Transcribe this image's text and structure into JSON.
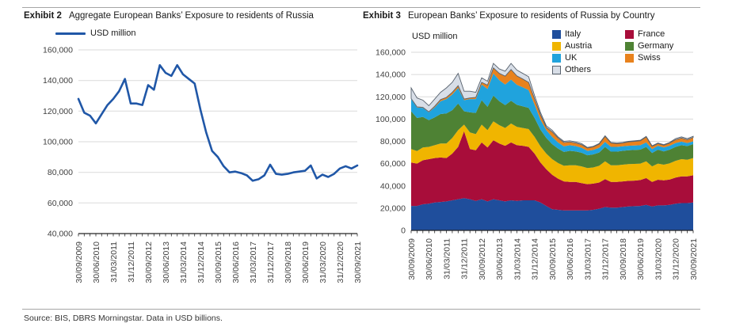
{
  "page": {
    "source_text": "Source: BIS, DBRS Morningstar. Data in USD billions."
  },
  "exhibit2": {
    "label": "Exhibit 2",
    "title": "Aggregate European Banks’ Exposure to residents of Russia",
    "legend_label": "USD million"
  },
  "exhibit3": {
    "label": "Exhibit 3",
    "title": "European Banks’ Exposure to residents of Russia by Country",
    "unit_label": "USD million",
    "legend": [
      {
        "label": "Italy",
        "color": "#1F4E9C"
      },
      {
        "label": "France",
        "color": "#A80D3A"
      },
      {
        "label": "Austria",
        "color": "#F0B500"
      },
      {
        "label": "Germany",
        "color": "#4E8234"
      },
      {
        "label": "UK",
        "color": "#20A3DD"
      },
      {
        "label": "Swiss",
        "color": "#E8821D"
      },
      {
        "label": "Others",
        "color": "#D8DEE7",
        "border": "#58626e"
      }
    ]
  },
  "chart_data": [
    {
      "type": "line",
      "title": "Aggregate European Banks’ Exposure to residents of Russia",
      "ylabel": "USD million",
      "color": "#2057A7",
      "ylim": [
        40000,
        160000
      ],
      "ystep": 20000,
      "grid": true,
      "x_tick_step": 3,
      "x": [
        "30/09/2009",
        "31/12/2009",
        "31/03/2010",
        "30/06/2010",
        "30/09/2010",
        "31/12/2010",
        "31/03/2011",
        "30/06/2011",
        "30/09/2011",
        "31/12/2011",
        "31/03/2012",
        "30/06/2012",
        "30/09/2012",
        "31/12/2012",
        "31/03/2013",
        "30/06/2013",
        "30/09/2013",
        "31/12/2013",
        "31/03/2014",
        "30/06/2014",
        "30/09/2014",
        "31/12/2014",
        "31/03/2015",
        "30/06/2015",
        "30/09/2015",
        "31/12/2015",
        "31/03/2016",
        "30/06/2016",
        "30/09/2016",
        "31/12/2016",
        "31/03/2017",
        "30/06/2017",
        "30/09/2017",
        "31/12/2017",
        "31/03/2018",
        "30/06/2018",
        "30/09/2018",
        "31/12/2018",
        "31/03/2019",
        "30/06/2019",
        "30/09/2019",
        "31/12/2019",
        "31/03/2020",
        "30/06/2020",
        "30/09/2020",
        "31/12/2020",
        "31/03/2021",
        "30/06/2021",
        "30/09/2021"
      ],
      "values": [
        128000,
        119000,
        117000,
        112000,
        118000,
        124000,
        128000,
        133000,
        141000,
        125000,
        125000,
        124000,
        137000,
        134000,
        150000,
        145000,
        143000,
        150000,
        144000,
        141000,
        138000,
        121000,
        106000,
        94000,
        90000,
        84000,
        80000,
        80500,
        79500,
        78000,
        74500,
        75500,
        78000,
        85000,
        79000,
        78500,
        79000,
        80000,
        80500,
        81000,
        84500,
        76000,
        78500,
        77000,
        79000,
        82500,
        84000,
        82500,
        84500
      ]
    },
    {
      "type": "area",
      "stacked": true,
      "title": "European Banks’ Exposure to residents of Russia by Country",
      "ylabel": "USD million",
      "ylim": [
        0,
        160000
      ],
      "ystep": 20000,
      "grid": true,
      "legend_position": "top-right",
      "x_tick_step": 3,
      "x": [
        "30/09/2009",
        "31/12/2009",
        "31/03/2010",
        "30/06/2010",
        "30/09/2010",
        "31/12/2010",
        "31/03/2011",
        "30/06/2011",
        "30/09/2011",
        "31/12/2011",
        "31/03/2012",
        "30/06/2012",
        "30/09/2012",
        "31/12/2012",
        "31/03/2013",
        "30/06/2013",
        "30/09/2013",
        "31/12/2013",
        "31/03/2014",
        "30/06/2014",
        "30/09/2014",
        "31/12/2014",
        "31/03/2015",
        "30/06/2015",
        "30/09/2015",
        "31/12/2015",
        "31/03/2016",
        "30/06/2016",
        "30/09/2016",
        "31/12/2016",
        "31/03/2017",
        "30/06/2017",
        "30/09/2017",
        "31/12/2017",
        "31/03/2018",
        "30/06/2018",
        "30/09/2018",
        "31/12/2018",
        "31/03/2019",
        "30/06/2019",
        "30/09/2019",
        "31/12/2019",
        "31/03/2020",
        "30/06/2020",
        "30/09/2020",
        "31/12/2020",
        "31/03/2021",
        "30/06/2021",
        "30/09/2021"
      ],
      "series": [
        {
          "name": "Italy",
          "color": "#1F4E9C",
          "values": [
            22000,
            22000,
            23500,
            24000,
            25000,
            25500,
            26000,
            27000,
            28000,
            29000,
            28000,
            26500,
            28000,
            26000,
            28000,
            27000,
            26000,
            27000,
            26500,
            27000,
            27000,
            27000,
            25000,
            22000,
            19000,
            18500,
            18000,
            18000,
            18000,
            18000,
            18000,
            18500,
            19500,
            21000,
            20500,
            20500,
            21000,
            21500,
            21750,
            22000,
            23000,
            21500,
            22500,
            22500,
            23000,
            24000,
            24500,
            24500,
            25000
          ]
        },
        {
          "name": "France",
          "color": "#A80D3A",
          "values": [
            39000,
            38000,
            39500,
            40000,
            40000,
            40000,
            39000,
            42000,
            47000,
            60000,
            45000,
            45500,
            51000,
            48500,
            53000,
            51000,
            50000,
            52000,
            50000,
            49000,
            48000,
            42000,
            36000,
            33000,
            31000,
            28000,
            26000,
            25500,
            25500,
            24500,
            23500,
            23500,
            23500,
            25000,
            23000,
            23000,
            23000,
            23000,
            23000,
            23250,
            24000,
            22000,
            23000,
            22500,
            22750,
            23500,
            24000,
            24000,
            24500
          ]
        },
        {
          "name": "Austria",
          "color": "#F0B500",
          "values": [
            12000,
            11300,
            11500,
            11000,
            11500,
            12500,
            13000,
            14000,
            15000,
            6000,
            15000,
            14500,
            16000,
            15500,
            17000,
            16500,
            16000,
            17000,
            16500,
            16000,
            16000,
            15000,
            14500,
            14000,
            14000,
            14000,
            14000,
            15000,
            15000,
            15000,
            14500,
            14500,
            15000,
            16000,
            15000,
            15000,
            15000,
            15000,
            15000,
            14750,
            15000,
            14000,
            14500,
            14000,
            14500,
            15000,
            15500,
            15000,
            15500
          ]
        },
        {
          "name": "Germany",
          "color": "#4E8234",
          "values": [
            34000,
            29700,
            27500,
            24000,
            25000,
            26500,
            27000,
            25000,
            24000,
            12000,
            18000,
            19000,
            22000,
            21000,
            23000,
            21500,
            20500,
            20500,
            19750,
            19500,
            19000,
            17000,
            15000,
            14000,
            13500,
            13000,
            12500,
            13000,
            12500,
            12250,
            11500,
            11750,
            12000,
            13000,
            12250,
            12250,
            12500,
            12500,
            12500,
            12500,
            13000,
            12000,
            12500,
            12000,
            12250,
            12500,
            12500,
            12250,
            12500
          ]
        },
        {
          "name": "UK",
          "color": "#20A3DD",
          "values": [
            11000,
            9400,
            8000,
            7000,
            9000,
            11500,
            13000,
            14000,
            14000,
            10000,
            12000,
            12500,
            14000,
            16000,
            20000,
            19000,
            18500,
            19000,
            18000,
            17000,
            16000,
            12000,
            9000,
            7000,
            6500,
            5500,
            5000,
            5000,
            4750,
            4500,
            4000,
            4000,
            4250,
            4500,
            4250,
            4250,
            4000,
            4000,
            4000,
            4000,
            4000,
            3500,
            3500,
            3500,
            3500,
            3500,
            3250,
            2750,
            2500
          ]
        },
        {
          "name": "Swiss",
          "color": "#E8821D",
          "values": [
            500,
            500,
            500,
            500,
            1000,
            1500,
            1500,
            2000,
            2000,
            1000,
            1000,
            1500,
            2000,
            3500,
            5000,
            6000,
            7500,
            9000,
            8000,
            7500,
            7000,
            5000,
            4500,
            2500,
            4500,
            4000,
            3500,
            3000,
            2750,
            2750,
            2500,
            2750,
            3250,
            5000,
            3500,
            3000,
            3000,
            3500,
            3750,
            4000,
            5000,
            2500,
            2000,
            2000,
            2500,
            3000,
            3250,
            3000,
            3500
          ]
        },
        {
          "name": "Others",
          "color": "#D8DEE7",
          "border": "#58626e",
          "values": [
            9500,
            8100,
            6500,
            5500,
            6500,
            6500,
            8500,
            9000,
            11000,
            7000,
            6000,
            4500,
            4000,
            3500,
            4000,
            4000,
            4500,
            5500,
            5250,
            5000,
            5000,
            3000,
            2000,
            1500,
            1500,
            1000,
            1000,
            1000,
            1000,
            1000,
            500,
            500,
            500,
            500,
            500,
            500,
            500,
            500,
            500,
            500,
            500,
            500,
            500,
            500,
            500,
            1000,
            1000,
            1000,
            1000
          ]
        }
      ]
    }
  ]
}
